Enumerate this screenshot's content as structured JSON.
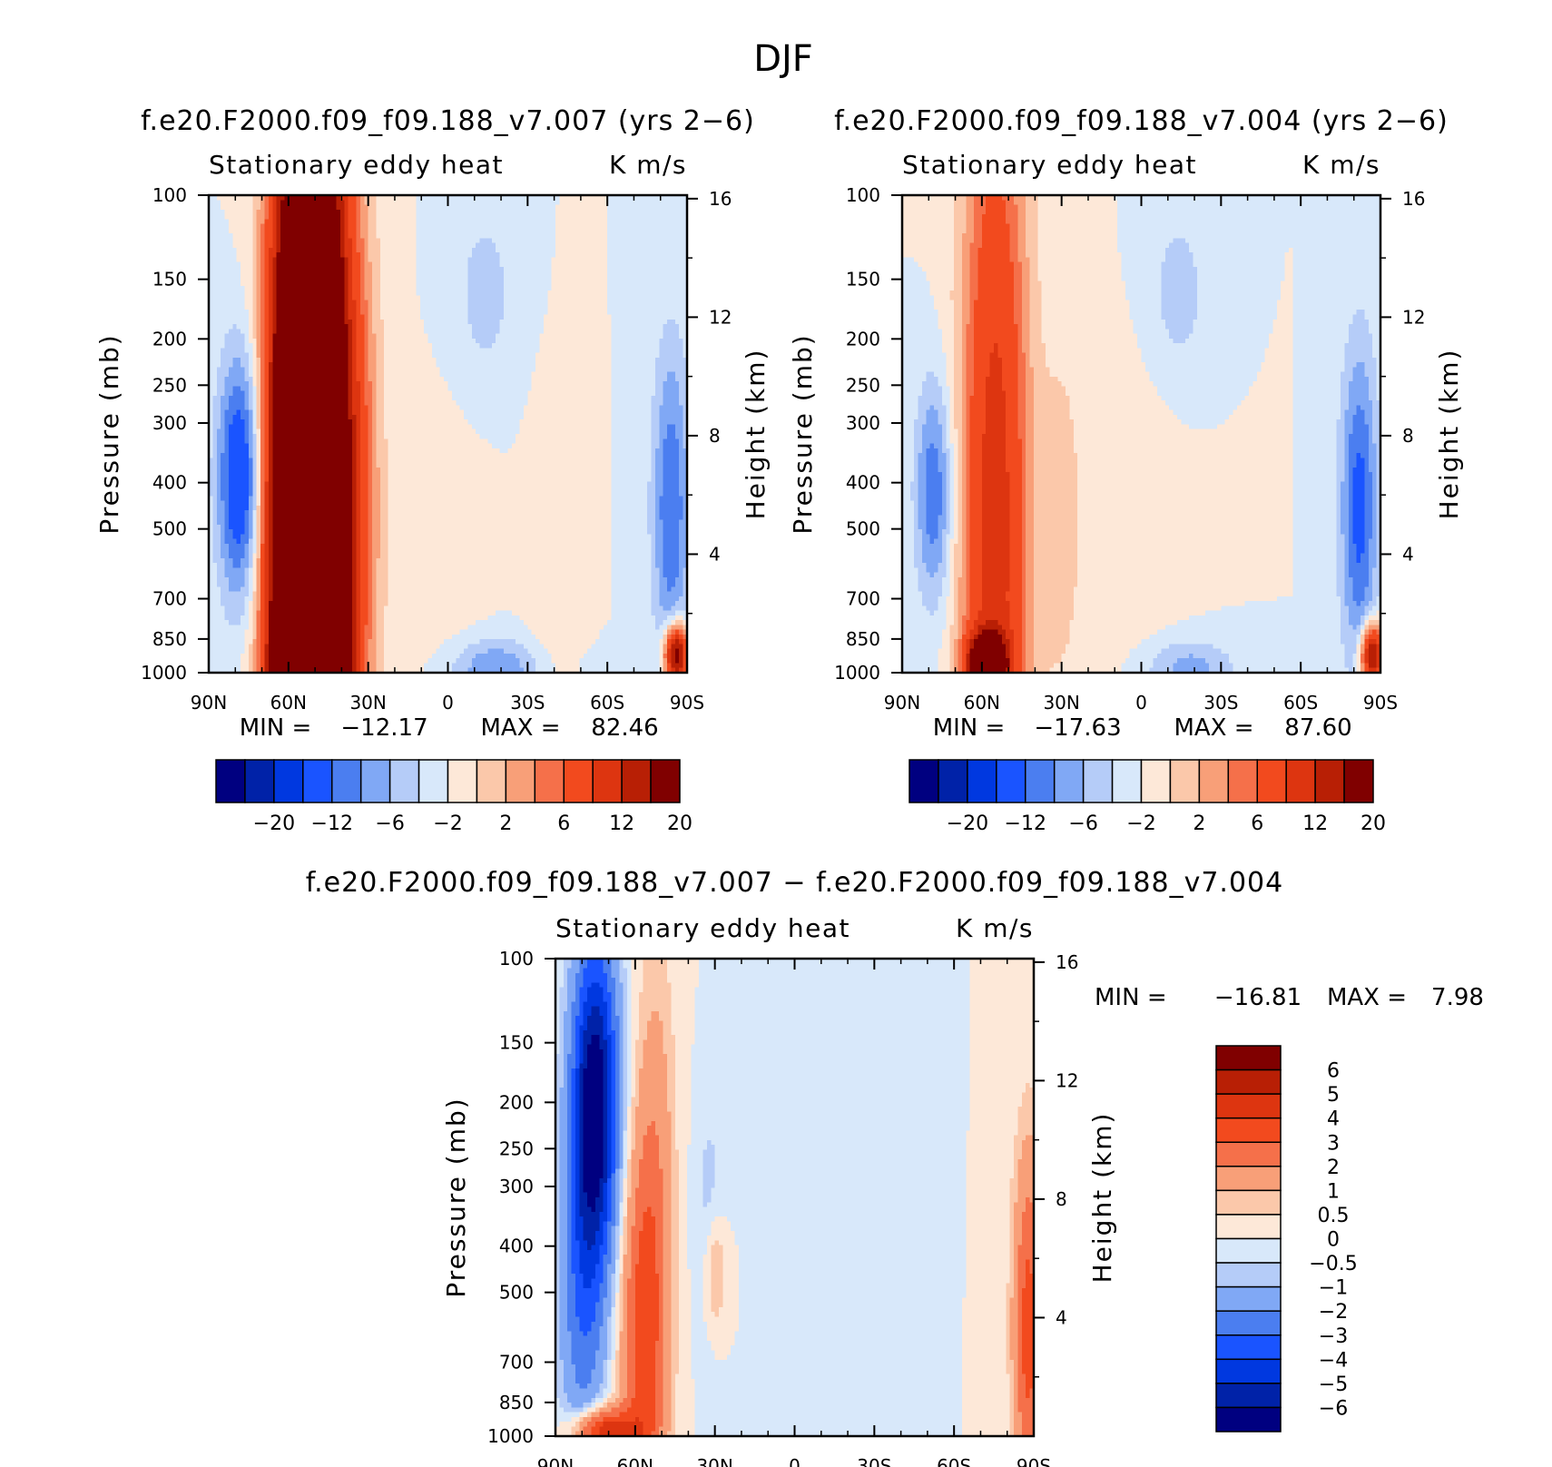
{
  "page_title": "DJF",
  "chart_data": [
    {
      "type": "heatmap",
      "id": "panel-007",
      "title": "f.e20.F2000.f09_f09.188_v7.007 (yrs 2−6)",
      "left_string": "Stationary eddy heat",
      "right_string": "K m/s",
      "ylabel": "Pressure (mb)",
      "y2label": "Height (km)",
      "x_ticks": [
        "90N",
        "60N",
        "30N",
        "0",
        "30S",
        "60S",
        "90S"
      ],
      "x_tick_lat": [
        90,
        60,
        30,
        0,
        -30,
        -60,
        -90
      ],
      "xlim": [
        90,
        -90
      ],
      "y_ticks": [
        "100",
        "150",
        "200",
        "250",
        "300",
        "400",
        "500",
        "700",
        "850",
        "1000"
      ],
      "y_tick_p": [
        100,
        150,
        200,
        250,
        300,
        400,
        500,
        700,
        850,
        1000
      ],
      "ylim": [
        1000,
        100
      ],
      "height_ticks": [
        "16",
        "12",
        "8",
        "4"
      ],
      "height_km": [
        16,
        12,
        8,
        4
      ],
      "stats": {
        "min_label": "MIN =",
        "min": "−12.17",
        "max_label": "MAX =",
        "max": "82.46"
      },
      "features": [
        {
          "lat": 78,
          "p": 390,
          "value": -12,
          "lat_w": 6,
          "p_w": 0.42
        },
        {
          "lat": 52,
          "p": 560,
          "value": 80,
          "lat_w": 9,
          "p_w": 1.4
        },
        {
          "lat": 52,
          "p": 950,
          "value": 82,
          "lat_w": 6,
          "p_w": 0.12
        },
        {
          "lat": 32,
          "p": 400,
          "value": 4,
          "lat_w": 6,
          "p_w": 1.0
        },
        {
          "lat": 5,
          "p": 550,
          "value": 1.5,
          "lat_w": 12,
          "p_w": 0.4
        },
        {
          "lat": -14,
          "p": 160,
          "value": -3,
          "lat_w": 8,
          "p_w": 0.3
        },
        {
          "lat": -18,
          "p": 980,
          "value": -6,
          "lat_w": 12,
          "p_w": 0.1
        },
        {
          "lat": -38,
          "p": 800,
          "value": 1.2,
          "lat_w": 6,
          "p_w": 0.6
        },
        {
          "lat": -84,
          "p": 450,
          "value": -8,
          "lat_w": 5,
          "p_w": 0.55
        },
        {
          "lat": -86,
          "p": 920,
          "value": 25,
          "lat_w": 3,
          "p_w": 0.1
        }
      ],
      "colorbar": {
        "levels": [
          "−20",
          "−12",
          "−6",
          "−2",
          "2",
          "6",
          "12",
          "20"
        ],
        "colors": [
          "#000080",
          "#0022a8",
          "#0038e0",
          "#1a54ff",
          "#4b7ef0",
          "#80a8f5",
          "#b5ccf8",
          "#d8e8fa",
          "#fde8d8",
          "#fbc8aa",
          "#f89f78",
          "#f5704a",
          "#f24a1e",
          "#dd3510",
          "#b81f05",
          "#800000"
        ],
        "bounds": [
          -100,
          -20,
          -16,
          -12,
          -8,
          -6,
          -4,
          -2,
          0,
          2,
          4,
          6,
          8,
          12,
          16,
          20,
          100
        ]
      }
    },
    {
      "type": "heatmap",
      "id": "panel-004",
      "title": "f.e20.F2000.f09_f09.188_v7.004 (yrs 2−6)",
      "left_string": "Stationary eddy heat",
      "right_string": "K m/s",
      "ylabel": "Pressure (mb)",
      "y2label": "Height (km)",
      "x_ticks": [
        "90N",
        "60N",
        "30N",
        "0",
        "30S",
        "60S",
        "90S"
      ],
      "x_tick_lat": [
        90,
        60,
        30,
        0,
        -30,
        -60,
        -90
      ],
      "xlim": [
        90,
        -90
      ],
      "y_ticks": [
        "100",
        "150",
        "200",
        "250",
        "300",
        "400",
        "500",
        "700",
        "850",
        "1000"
      ],
      "y_tick_p": [
        100,
        150,
        200,
        250,
        300,
        400,
        500,
        700,
        850,
        1000
      ],
      "ylim": [
        1000,
        100
      ],
      "height_ticks": [
        "16",
        "12",
        "8",
        "4"
      ],
      "height_km": [
        16,
        12,
        8,
        4
      ],
      "stats": {
        "min_label": "MIN =",
        "min": "−17.63",
        "max_label": "MAX =",
        "max": "87.60"
      },
      "features": [
        {
          "lat": 78,
          "p": 420,
          "value": -8,
          "lat_w": 5,
          "p_w": 0.38
        },
        {
          "lat": 55,
          "p": 500,
          "value": 14,
          "lat_w": 9,
          "p_w": 1.6
        },
        {
          "lat": 58,
          "p": 960,
          "value": 30,
          "lat_w": 5,
          "p_w": 0.1
        },
        {
          "lat": 30,
          "p": 480,
          "value": 3,
          "lat_w": 5,
          "p_w": 0.6
        },
        {
          "lat": 5,
          "p": 480,
          "value": 1.5,
          "lat_w": 14,
          "p_w": 0.5
        },
        {
          "lat": -14,
          "p": 160,
          "value": -3,
          "lat_w": 8,
          "p_w": 0.3
        },
        {
          "lat": -18,
          "p": 980,
          "value": -5,
          "lat_w": 12,
          "p_w": 0.1
        },
        {
          "lat": -82,
          "p": 450,
          "value": -9,
          "lat_w": 5,
          "p_w": 0.55
        },
        {
          "lat": -87,
          "p": 920,
          "value": 22,
          "lat_w": 3,
          "p_w": 0.1
        }
      ],
      "colorbar": {
        "levels": [
          "−20",
          "−12",
          "−6",
          "−2",
          "2",
          "6",
          "12",
          "20"
        ],
        "colors": [
          "#000080",
          "#0022a8",
          "#0038e0",
          "#1a54ff",
          "#4b7ef0",
          "#80a8f5",
          "#b5ccf8",
          "#d8e8fa",
          "#fde8d8",
          "#fbc8aa",
          "#f89f78",
          "#f5704a",
          "#f24a1e",
          "#dd3510",
          "#b81f05",
          "#800000"
        ],
        "bounds": [
          -100,
          -20,
          -16,
          -12,
          -8,
          -6,
          -4,
          -2,
          0,
          2,
          4,
          6,
          8,
          12,
          16,
          20,
          100
        ]
      }
    },
    {
      "type": "heatmap",
      "id": "panel-diff",
      "title": "f.e20.F2000.f09_f09.188_v7.007 − f.e20.F2000.f09_f09.188_v7.004",
      "left_string": "Stationary eddy heat",
      "right_string": "K m/s",
      "ylabel": "Pressure (mb)",
      "y2label": "Height (km)",
      "x_ticks": [
        "90N",
        "60N",
        "30N",
        "0",
        "30S",
        "60S",
        "90S"
      ],
      "x_tick_lat": [
        90,
        60,
        30,
        0,
        -30,
        -60,
        -90
      ],
      "xlim": [
        90,
        -90
      ],
      "y_ticks": [
        "100",
        "150",
        "200",
        "250",
        "300",
        "400",
        "500",
        "700",
        "850",
        "1000"
      ],
      "y_tick_p": [
        100,
        150,
        200,
        250,
        300,
        400,
        500,
        700,
        850,
        1000
      ],
      "ylim": [
        1000,
        100
      ],
      "height_ticks": [
        "16",
        "12",
        "8",
        "4"
      ],
      "height_km": [
        16,
        12,
        8,
        4
      ],
      "stats": {
        "min_label": "MIN =",
        "min": "−16.81",
        "max_label": "MAX =",
        "max": "7.98"
      },
      "features": [
        {
          "lat": 75,
          "p": 200,
          "value": -7,
          "lat_w": 6,
          "p_w": 0.55
        },
        {
          "lat": 80,
          "p": 500,
          "value": -2.5,
          "lat_w": 6,
          "p_w": 0.6
        },
        {
          "lat": 57,
          "p": 650,
          "value": 3.5,
          "lat_w": 6,
          "p_w": 0.7
        },
        {
          "lat": 52,
          "p": 250,
          "value": 1.2,
          "lat_w": 5,
          "p_w": 0.8
        },
        {
          "lat": 72,
          "p": 980,
          "value": 5,
          "lat_w": 8,
          "p_w": 0.08
        },
        {
          "lat": 32,
          "p": 350,
          "value": -0.8,
          "lat_w": 4,
          "p_w": 0.4
        },
        {
          "lat": 30,
          "p": 450,
          "value": 1.5,
          "lat_w": 3,
          "p_w": 0.2
        },
        {
          "lat": -88,
          "p": 600,
          "value": 3.5,
          "lat_w": 4,
          "p_w": 0.6
        },
        {
          "lat": -10,
          "p": 200,
          "value": -0.4,
          "lat_w": 10,
          "p_w": 0.5
        }
      ],
      "colorbar": {
        "levels": [
          "6",
          "5",
          "4",
          "3",
          "2",
          "1",
          "0.5",
          "0",
          "−0.5",
          "−1",
          "−2",
          "−3",
          "−4",
          "−5",
          "−6"
        ],
        "colors": [
          "#000080",
          "#0022a8",
          "#0038e0",
          "#1a54ff",
          "#4b7ef0",
          "#80a8f5",
          "#b5ccf8",
          "#d8e8fa",
          "#fde8d8",
          "#fbc8aa",
          "#f89f78",
          "#f5704a",
          "#f24a1e",
          "#dd3510",
          "#b81f05",
          "#800000"
        ],
        "bounds": [
          -100,
          -6,
          -5,
          -4,
          -3,
          -2,
          -1,
          -0.5,
          0,
          0.5,
          1,
          2,
          3,
          4,
          5,
          6,
          100
        ]
      }
    }
  ]
}
